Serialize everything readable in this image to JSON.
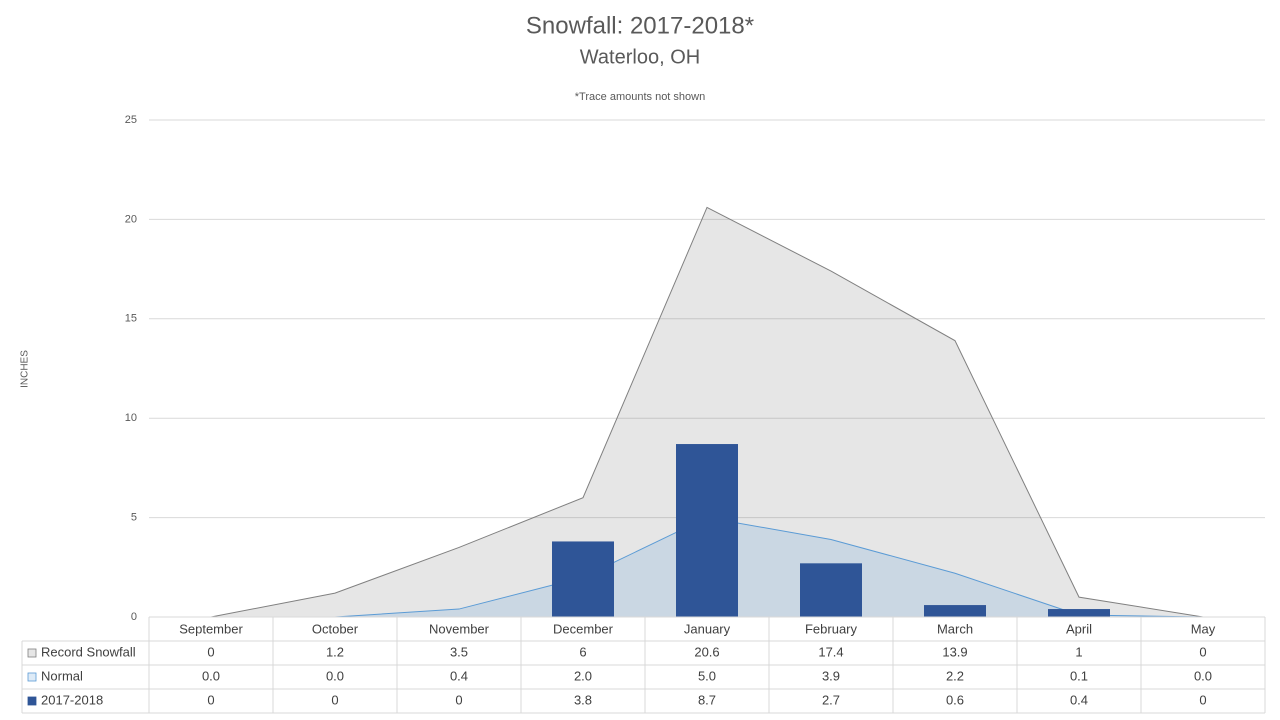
{
  "chart_data": {
    "type": "combo",
    "title": "Snowfall: 2017-2018*",
    "subtitle": "Waterloo, OH",
    "annotation": "*Trace amounts not shown",
    "y_label": "INCHES",
    "categories": [
      "September",
      "October",
      "November",
      "December",
      "January",
      "February",
      "March",
      "April",
      "May"
    ],
    "series": [
      {
        "name": "Record Snowfall",
        "type": "area",
        "color": "#808080",
        "values": [
          0,
          1.2,
          3.5,
          6,
          20.6,
          17.4,
          13.9,
          1,
          0
        ]
      },
      {
        "name": "Normal",
        "type": "area",
        "color": "#5b9bd5",
        "values": [
          0,
          0,
          0.4,
          2,
          5,
          3.9,
          2.2,
          0.1,
          0
        ],
        "value_labels": [
          "0.0",
          "0.0",
          "0.4",
          "2.0",
          "5.0",
          "3.9",
          "2.2",
          "0.1",
          "0.0"
        ]
      },
      {
        "name": "2017-2018",
        "type": "bar",
        "color": "#2f5597",
        "values": [
          0,
          0,
          0,
          3.8,
          8.7,
          2.7,
          0.6,
          0.4,
          0
        ]
      }
    ],
    "ylim": [
      0,
      25
    ],
    "yticks": [
      0,
      5,
      10,
      15,
      20,
      25
    ],
    "grid": true
  }
}
